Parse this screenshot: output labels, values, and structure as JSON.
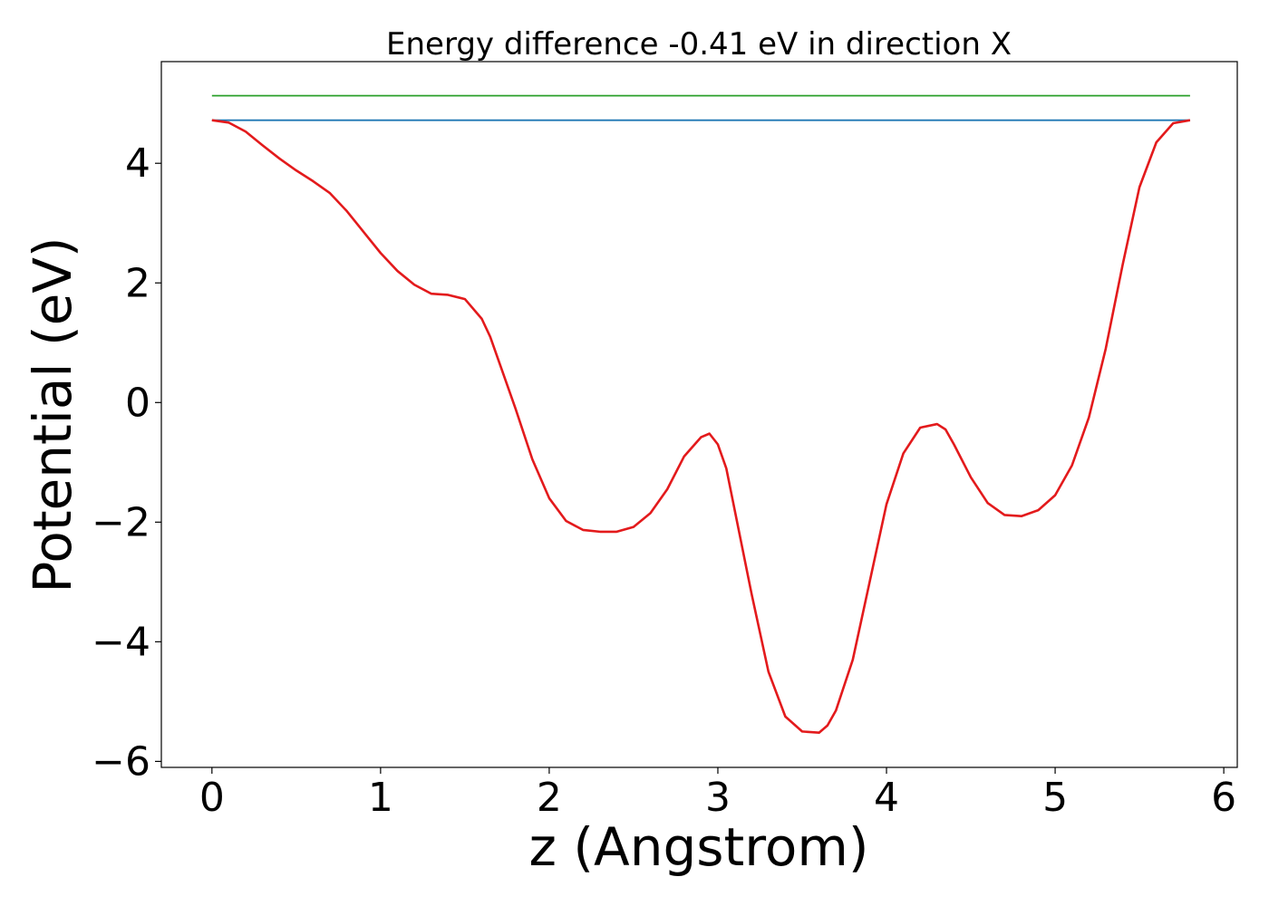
{
  "chart_data": {
    "type": "line",
    "title": "Energy difference -0.41 eV in direction X",
    "xlabel": "z (Angstrom)",
    "ylabel": "Potential (eV)",
    "xlim": [
      -0.3,
      6.08
    ],
    "ylim": [
      -6.1,
      5.7
    ],
    "x_ticks": [
      0,
      1,
      2,
      3,
      4,
      5,
      6
    ],
    "y_ticks": [
      -6,
      -4,
      -2,
      0,
      2,
      4
    ],
    "x_tick_labels": [
      "0",
      "1",
      "2",
      "3",
      "4",
      "5",
      "6"
    ],
    "y_tick_labels": [
      "−6",
      "−4",
      "−2",
      "0",
      "2",
      "4"
    ],
    "grid": false,
    "series": [
      {
        "color": "#2ca02c",
        "x": [
          0,
          5.8
        ],
        "y": [
          5.13,
          5.13
        ]
      },
      {
        "color": "#1f77b4",
        "x": [
          0,
          5.8
        ],
        "y": [
          4.72,
          4.72
        ]
      },
      {
        "color": "#e31a1c",
        "x": [
          0,
          0.1,
          0.2,
          0.3,
          0.4,
          0.5,
          0.6,
          0.7,
          0.8,
          0.9,
          1.0,
          1.1,
          1.2,
          1.3,
          1.4,
          1.5,
          1.6,
          1.65,
          1.7,
          1.8,
          1.9,
          2.0,
          2.1,
          2.2,
          2.3,
          2.4,
          2.5,
          2.6,
          2.7,
          2.8,
          2.9,
          2.95,
          3.0,
          3.05,
          3.1,
          3.2,
          3.3,
          3.4,
          3.5,
          3.6,
          3.65,
          3.7,
          3.8,
          3.9,
          4.0,
          4.1,
          4.2,
          4.3,
          4.35,
          4.4,
          4.5,
          4.6,
          4.7,
          4.8,
          4.9,
          5.0,
          5.1,
          5.2,
          5.3,
          5.4,
          5.5,
          5.6,
          5.7,
          5.8
        ],
        "y": [
          4.72,
          4.68,
          4.53,
          4.3,
          4.08,
          3.88,
          3.7,
          3.5,
          3.2,
          2.85,
          2.5,
          2.2,
          1.97,
          1.82,
          1.8,
          1.73,
          1.4,
          1.1,
          0.7,
          -0.1,
          -0.95,
          -1.6,
          -1.98,
          -2.13,
          -2.16,
          -2.16,
          -2.08,
          -1.85,
          -1.45,
          -0.9,
          -0.58,
          -0.52,
          -0.7,
          -1.1,
          -1.8,
          -3.2,
          -4.5,
          -5.25,
          -5.5,
          -5.52,
          -5.4,
          -5.15,
          -4.3,
          -3.0,
          -1.7,
          -0.85,
          -0.42,
          -0.36,
          -0.45,
          -0.7,
          -1.25,
          -1.68,
          -1.88,
          -1.9,
          -1.8,
          -1.55,
          -1.05,
          -0.25,
          0.9,
          2.3,
          3.6,
          4.35,
          4.67,
          4.72
        ]
      }
    ]
  }
}
